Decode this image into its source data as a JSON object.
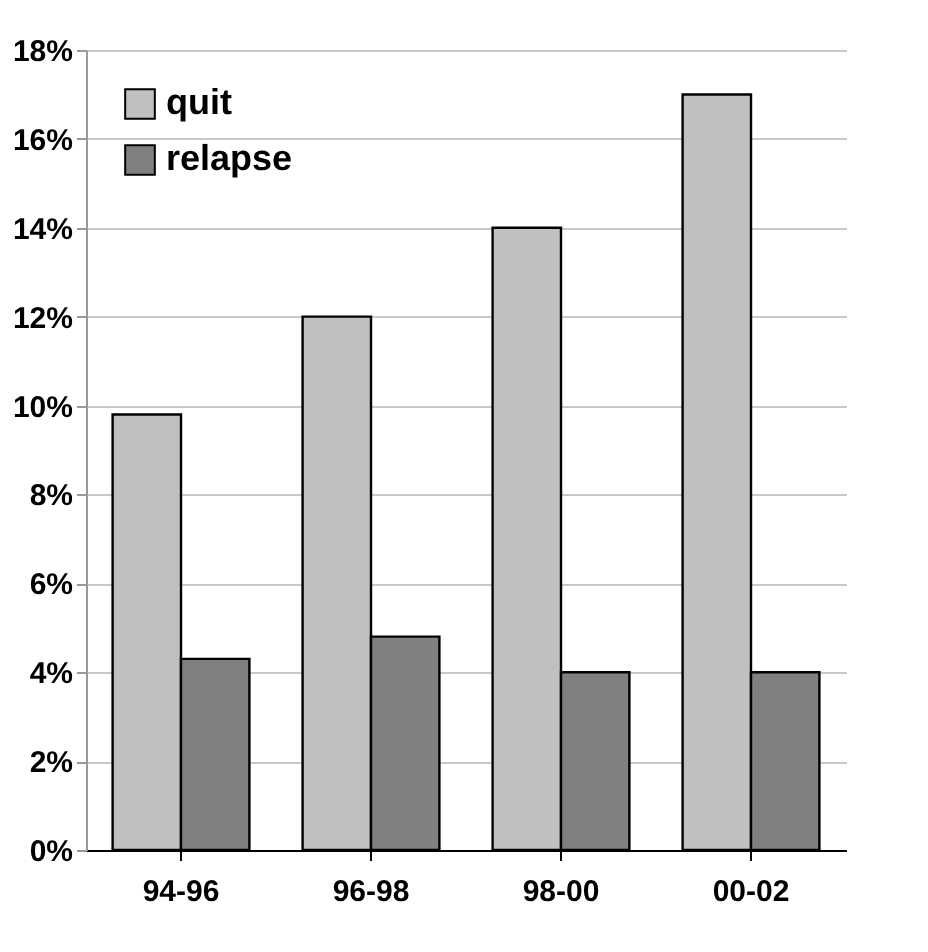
{
  "chart_data": {
    "type": "bar",
    "categories": [
      "94-96",
      "96-98",
      "98-00",
      "00-02"
    ],
    "series": [
      {
        "name": "quit",
        "color": "#c0c0c0",
        "values": [
          9.8,
          12,
          14,
          17
        ]
      },
      {
        "name": "relapse",
        "color": "#808080",
        "values": [
          4.3,
          4.8,
          4.0,
          4.0
        ]
      }
    ],
    "ylim": [
      0,
      18
    ],
    "yticks": [
      {
        "value": 0,
        "label": "0%"
      },
      {
        "value": 2,
        "label": "2%"
      },
      {
        "value": 4,
        "label": "4%"
      },
      {
        "value": 6,
        "label": "6%"
      },
      {
        "value": 8,
        "label": "8%"
      },
      {
        "value": 10,
        "label": "10%"
      },
      {
        "value": 12,
        "label": "12%"
      },
      {
        "value": 14,
        "label": "14%"
      },
      {
        "value": 16,
        "label": "16%"
      },
      {
        "value": 18,
        "label": "18%"
      }
    ],
    "grid": "y",
    "legend": "top left"
  }
}
